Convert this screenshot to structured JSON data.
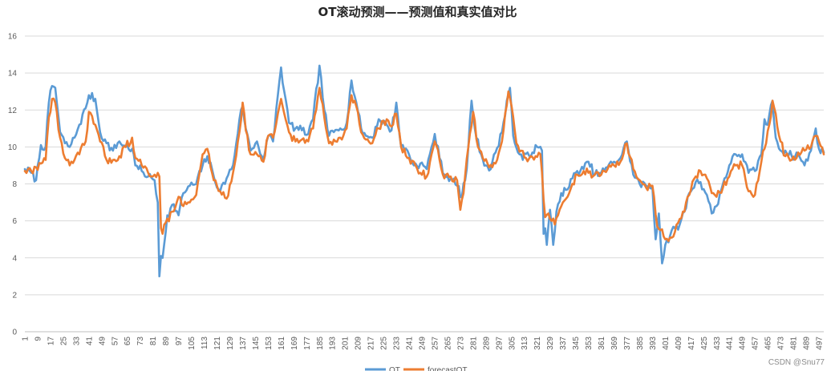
{
  "chart_data": {
    "type": "line",
    "title": "OT滚动预测——预测值和真实值对比",
    "ylim": [
      0,
      16
    ],
    "yticks": [
      "0",
      "2",
      "4",
      "6",
      "8",
      "10",
      "12",
      "14",
      "16"
    ],
    "x_start": 1,
    "x_end": 500,
    "x_step": 8,
    "grid": "horizontal",
    "legend": "bottom-center",
    "series": [
      {
        "name": "OT",
        "color": "#5B9BD5",
        "anchors": [
          [
            1,
            8.8
          ],
          [
            5,
            8.6
          ],
          [
            8,
            8.2
          ],
          [
            11,
            10.1
          ],
          [
            14,
            10.0
          ],
          [
            16,
            12.4
          ],
          [
            18,
            13.3
          ],
          [
            20,
            13.2
          ],
          [
            23,
            10.8
          ],
          [
            26,
            10.2
          ],
          [
            29,
            10.0
          ],
          [
            32,
            10.5
          ],
          [
            35,
            11.2
          ],
          [
            39,
            12.1
          ],
          [
            41,
            12.8
          ],
          [
            45,
            12.6
          ],
          [
            48,
            10.8
          ],
          [
            52,
            10.2
          ],
          [
            56,
            9.8
          ],
          [
            60,
            10.3
          ],
          [
            64,
            10.0
          ],
          [
            68,
            9.9
          ],
          [
            70,
            9.0
          ],
          [
            74,
            8.7
          ],
          [
            78,
            8.4
          ],
          [
            82,
            8.2
          ],
          [
            84,
            7.0
          ],
          [
            85,
            3.0
          ],
          [
            86,
            4.1
          ],
          [
            87,
            4.0
          ],
          [
            90,
            6.3
          ],
          [
            94,
            6.9
          ],
          [
            97,
            6.3
          ],
          [
            100,
            7.5
          ],
          [
            104,
            7.9
          ],
          [
            108,
            8.0
          ],
          [
            112,
            9.0
          ],
          [
            115,
            9.5
          ],
          [
            119,
            8.4
          ],
          [
            123,
            7.6
          ],
          [
            127,
            8.3
          ],
          [
            131,
            9.0
          ],
          [
            135,
            11.5
          ],
          [
            137,
            12.2
          ],
          [
            139,
            11.0
          ],
          [
            142,
            9.8
          ],
          [
            146,
            10.3
          ],
          [
            150,
            9.3
          ],
          [
            153,
            10.6
          ],
          [
            156,
            10.3
          ],
          [
            159,
            12.8
          ],
          [
            161,
            14.3
          ],
          [
            163,
            13.0
          ],
          [
            166,
            11.3
          ],
          [
            170,
            11.0
          ],
          [
            174,
            10.9
          ],
          [
            178,
            10.7
          ],
          [
            181,
            11.5
          ],
          [
            185,
            14.4
          ],
          [
            188,
            12.0
          ],
          [
            191,
            10.6
          ],
          [
            194,
            10.8
          ],
          [
            198,
            11.0
          ],
          [
            202,
            11.3
          ],
          [
            205,
            13.6
          ],
          [
            208,
            12.4
          ],
          [
            211,
            11.0
          ],
          [
            214,
            10.6
          ],
          [
            218,
            10.5
          ],
          [
            222,
            11.5
          ],
          [
            227,
            11.2
          ],
          [
            230,
            10.9
          ],
          [
            233,
            12.4
          ],
          [
            236,
            10.0
          ],
          [
            240,
            9.8
          ],
          [
            244,
            9.0
          ],
          [
            248,
            9.1
          ],
          [
            252,
            8.8
          ],
          [
            255,
            10.0
          ],
          [
            257,
            10.7
          ],
          [
            260,
            9.4
          ],
          [
            263,
            8.5
          ],
          [
            267,
            8.3
          ],
          [
            271,
            7.9
          ],
          [
            274,
            7.3
          ],
          [
            277,
            8.8
          ],
          [
            280,
            12.5
          ],
          [
            283,
            10.5
          ],
          [
            286,
            9.6
          ],
          [
            289,
            9.0
          ],
          [
            292,
            8.8
          ],
          [
            295,
            9.7
          ],
          [
            299,
            10.8
          ],
          [
            302,
            12.5
          ],
          [
            304,
            13.2
          ],
          [
            306,
            10.6
          ],
          [
            309,
            9.7
          ],
          [
            312,
            9.3
          ],
          [
            315,
            9.7
          ],
          [
            318,
            9.7
          ],
          [
            321,
            10.0
          ],
          [
            324,
            9.8
          ],
          [
            325,
            5.3
          ],
          [
            326,
            5.6
          ],
          [
            327,
            4.7
          ],
          [
            329,
            6.6
          ],
          [
            331,
            4.7
          ],
          [
            333,
            6.5
          ],
          [
            336,
            7.5
          ],
          [
            340,
            7.7
          ],
          [
            343,
            8.3
          ],
          [
            346,
            8.7
          ],
          [
            350,
            8.8
          ],
          [
            353,
            9.2
          ],
          [
            357,
            8.5
          ],
          [
            361,
            8.6
          ],
          [
            365,
            8.9
          ],
          [
            369,
            9.2
          ],
          [
            373,
            9.4
          ],
          [
            377,
            10.3
          ],
          [
            381,
            8.5
          ],
          [
            385,
            8.0
          ],
          [
            389,
            7.9
          ],
          [
            393,
            7.8
          ],
          [
            395,
            5.0
          ],
          [
            397,
            6.4
          ],
          [
            399,
            3.7
          ],
          [
            401,
            4.7
          ],
          [
            404,
            5.2
          ],
          [
            407,
            5.6
          ],
          [
            410,
            5.8
          ],
          [
            413,
            6.5
          ],
          [
            416,
            7.5
          ],
          [
            420,
            8.1
          ],
          [
            423,
            8.1
          ],
          [
            427,
            7.4
          ],
          [
            430,
            6.4
          ],
          [
            433,
            6.8
          ],
          [
            437,
            8.0
          ],
          [
            441,
            9.0
          ],
          [
            445,
            9.6
          ],
          [
            449,
            9.6
          ],
          [
            453,
            8.6
          ],
          [
            457,
            8.7
          ],
          [
            461,
            9.6
          ],
          [
            463,
            11.5
          ],
          [
            465,
            11.2
          ],
          [
            468,
            12.5
          ],
          [
            470,
            10.5
          ],
          [
            473,
            9.8
          ],
          [
            476,
            9.8
          ],
          [
            480,
            9.5
          ],
          [
            484,
            9.6
          ],
          [
            488,
            9.0
          ],
          [
            492,
            9.8
          ],
          [
            495,
            11.0
          ],
          [
            497,
            9.9
          ],
          [
            500,
            9.7
          ]
        ]
      },
      {
        "name": "forecastOT",
        "color": "#ED7D31",
        "anchors": [
          [
            1,
            8.7
          ],
          [
            5,
            8.7
          ],
          [
            8,
            8.9
          ],
          [
            11,
            9.1
          ],
          [
            14,
            9.3
          ],
          [
            16,
            11.6
          ],
          [
            18,
            12.6
          ],
          [
            20,
            12.4
          ],
          [
            23,
            10.5
          ],
          [
            26,
            9.4
          ],
          [
            29,
            9.0
          ],
          [
            32,
            9.3
          ],
          [
            35,
            9.6
          ],
          [
            39,
            10.3
          ],
          [
            41,
            11.9
          ],
          [
            45,
            11.2
          ],
          [
            48,
            10.3
          ],
          [
            52,
            9.3
          ],
          [
            56,
            9.3
          ],
          [
            60,
            9.5
          ],
          [
            64,
            10.0
          ],
          [
            68,
            10.5
          ],
          [
            70,
            9.4
          ],
          [
            74,
            9.0
          ],
          [
            78,
            8.6
          ],
          [
            82,
            8.5
          ],
          [
            84,
            8.6
          ],
          [
            85,
            8.4
          ],
          [
            86,
            5.6
          ],
          [
            87,
            5.3
          ],
          [
            89,
            5.9
          ],
          [
            93,
            6.5
          ],
          [
            97,
            7.3
          ],
          [
            100,
            6.8
          ],
          [
            104,
            7.0
          ],
          [
            108,
            7.4
          ],
          [
            112,
            9.6
          ],
          [
            115,
            9.9
          ],
          [
            119,
            8.2
          ],
          [
            123,
            7.6
          ],
          [
            127,
            7.2
          ],
          [
            131,
            8.6
          ],
          [
            135,
            10.8
          ],
          [
            137,
            12.4
          ],
          [
            139,
            10.9
          ],
          [
            142,
            9.6
          ],
          [
            146,
            9.6
          ],
          [
            150,
            9.2
          ],
          [
            153,
            10.6
          ],
          [
            156,
            10.5
          ],
          [
            159,
            11.8
          ],
          [
            161,
            12.6
          ],
          [
            163,
            11.8
          ],
          [
            166,
            10.8
          ],
          [
            170,
            10.3
          ],
          [
            174,
            10.4
          ],
          [
            178,
            10.3
          ],
          [
            181,
            11.0
          ],
          [
            185,
            13.2
          ],
          [
            188,
            11.6
          ],
          [
            191,
            10.2
          ],
          [
            194,
            10.4
          ],
          [
            198,
            10.5
          ],
          [
            202,
            11.0
          ],
          [
            205,
            12.8
          ],
          [
            208,
            12.2
          ],
          [
            211,
            10.8
          ],
          [
            214,
            10.4
          ],
          [
            218,
            10.2
          ],
          [
            222,
            11.0
          ],
          [
            227,
            11.5
          ],
          [
            230,
            11.1
          ],
          [
            233,
            11.8
          ],
          [
            236,
            10.0
          ],
          [
            240,
            9.4
          ],
          [
            244,
            9.2
          ],
          [
            248,
            8.6
          ],
          [
            252,
            8.4
          ],
          [
            255,
            9.6
          ],
          [
            257,
            10.3
          ],
          [
            260,
            9.3
          ],
          [
            263,
            8.3
          ],
          [
            267,
            8.4
          ],
          [
            271,
            8.2
          ],
          [
            273,
            6.6
          ],
          [
            275,
            7.5
          ],
          [
            278,
            10.0
          ],
          [
            281,
            11.9
          ],
          [
            284,
            10.0
          ],
          [
            287,
            9.4
          ],
          [
            290,
            9.1
          ],
          [
            293,
            8.9
          ],
          [
            296,
            9.3
          ],
          [
            299,
            10.3
          ],
          [
            303,
            13.0
          ],
          [
            305,
            12.2
          ],
          [
            308,
            10.2
          ],
          [
            311,
            9.8
          ],
          [
            314,
            9.4
          ],
          [
            317,
            9.5
          ],
          [
            320,
            9.5
          ],
          [
            323,
            9.6
          ],
          [
            326,
            6.2
          ],
          [
            328,
            6.4
          ],
          [
            330,
            6.0
          ],
          [
            332,
            5.8
          ],
          [
            334,
            6.3
          ],
          [
            337,
            7.0
          ],
          [
            340,
            7.3
          ],
          [
            343,
            8.0
          ],
          [
            346,
            8.5
          ],
          [
            350,
            8.7
          ],
          [
            353,
            8.6
          ],
          [
            357,
            8.5
          ],
          [
            361,
            8.5
          ],
          [
            365,
            8.8
          ],
          [
            369,
            9.0
          ],
          [
            373,
            9.2
          ],
          [
            377,
            10.2
          ],
          [
            381,
            8.8
          ],
          [
            385,
            8.2
          ],
          [
            389,
            7.8
          ],
          [
            393,
            7.9
          ],
          [
            396,
            5.7
          ],
          [
            398,
            5.5
          ],
          [
            401,
            5.0
          ],
          [
            404,
            5.1
          ],
          [
            407,
            5.4
          ],
          [
            410,
            6.1
          ],
          [
            413,
            6.5
          ],
          [
            416,
            7.4
          ],
          [
            420,
            8.4
          ],
          [
            423,
            8.7
          ],
          [
            427,
            8.3
          ],
          [
            430,
            7.5
          ],
          [
            433,
            7.3
          ],
          [
            437,
            7.8
          ],
          [
            441,
            8.4
          ],
          [
            445,
            9.0
          ],
          [
            449,
            9.0
          ],
          [
            453,
            7.6
          ],
          [
            457,
            7.4
          ],
          [
            461,
            9.2
          ],
          [
            463,
            9.9
          ],
          [
            466,
            11.2
          ],
          [
            468,
            12.5
          ],
          [
            470,
            11.8
          ],
          [
            473,
            10.3
          ],
          [
            476,
            9.5
          ],
          [
            480,
            9.3
          ],
          [
            484,
            9.7
          ],
          [
            488,
            9.8
          ],
          [
            492,
            10.0
          ],
          [
            495,
            10.6
          ],
          [
            497,
            10.3
          ],
          [
            500,
            9.6
          ]
        ]
      }
    ]
  },
  "watermark": "CSDN @Snu77"
}
